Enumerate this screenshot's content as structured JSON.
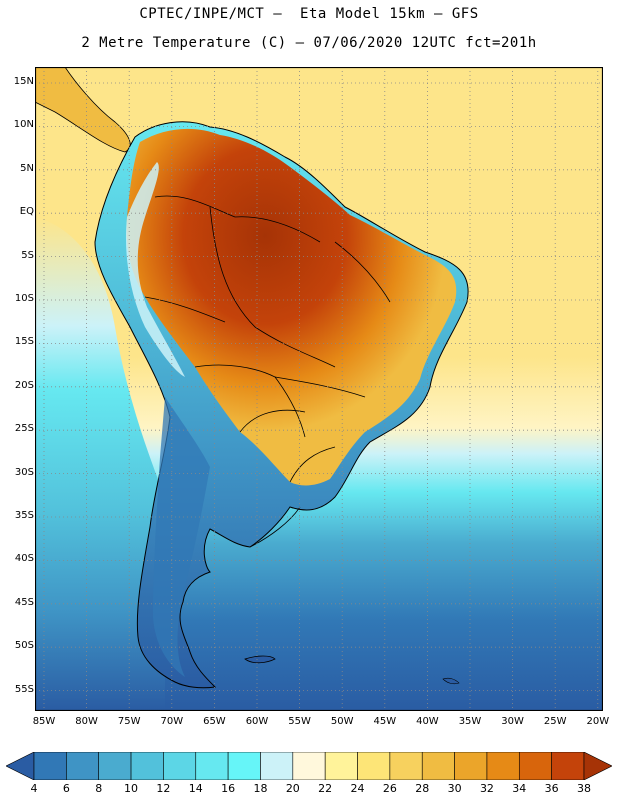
{
  "title_line1": "CPTEC/INPE/MCT –  Eta Model 15km – GFS",
  "title_line2": "2 Metre Temperature (C) – 07/06/2020 12UTC fct=201h",
  "lat_labels": [
    "15N",
    "10N",
    "5N",
    "EQ",
    "5S",
    "10S",
    "15S",
    "20S",
    "25S",
    "30S",
    "35S",
    "40S",
    "45S",
    "50S",
    "55S"
  ],
  "lon_labels": [
    "85W",
    "80W",
    "75W",
    "70W",
    "65W",
    "60W",
    "55W",
    "50W",
    "45W",
    "40W",
    "35W",
    "30W",
    "25W",
    "20W"
  ],
  "colorbar": {
    "labels": [
      "4",
      "6",
      "8",
      "10",
      "12",
      "14",
      "16",
      "18",
      "20",
      "22",
      "24",
      "26",
      "28",
      "30",
      "32",
      "34",
      "36",
      "38"
    ],
    "colors": [
      "#2a5ca3",
      "#3178b6",
      "#3f94c5",
      "#4aabcf",
      "#52c1db",
      "#5cd6e6",
      "#66e8f0",
      "#66f5f8",
      "#ccf2f8",
      "#fff8dc",
      "#fff39a",
      "#fde577",
      "#f7d15e",
      "#f0bc42",
      "#eba52a",
      "#e68a16",
      "#d8650c",
      "#c4430a",
      "#a63306"
    ]
  },
  "map": {
    "background_color": "#fde58a",
    "sea_south_color": "#3fb8d6"
  }
}
